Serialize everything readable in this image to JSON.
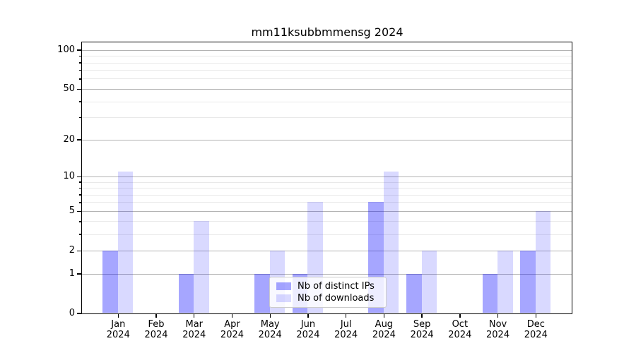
{
  "chart_data": {
    "type": "bar",
    "title": "mm11ksubbmmensg 2024",
    "categories": [
      "Jan",
      "Feb",
      "Mar",
      "Apr",
      "May",
      "Jun",
      "Jul",
      "Aug",
      "Sep",
      "Oct",
      "Nov",
      "Dec"
    ],
    "x_tick_year": "2024",
    "series": [
      {
        "name": "Nb of distinct IPs",
        "color": "#0000ff59",
        "values": [
          2,
          0,
          1,
          0,
          1,
          1,
          0,
          6,
          1,
          0,
          1,
          2
        ]
      },
      {
        "name": "Nb of downloads",
        "color": "#0000ff26",
        "values": [
          11,
          0,
          4,
          0,
          2,
          6,
          0,
          11,
          2,
          0,
          2,
          5
        ]
      }
    ],
    "y_axis": {
      "scale": "log1p",
      "tick_labels": [
        100,
        50,
        20,
        10,
        5,
        2,
        1,
        0
      ],
      "minor_ticks": [
        3,
        4,
        6,
        7,
        8,
        9,
        30,
        40,
        60,
        70,
        80,
        90
      ],
      "range_top": 114
    },
    "legend": {
      "position": "lower center",
      "entries": [
        "Nb of distinct IPs",
        "Nb of downloads"
      ]
    },
    "grid": {
      "major_color": "#b3b3b3",
      "minor_color": "#e9e9e9"
    },
    "axis_color": "#000000",
    "background_color": "#ffffff"
  }
}
